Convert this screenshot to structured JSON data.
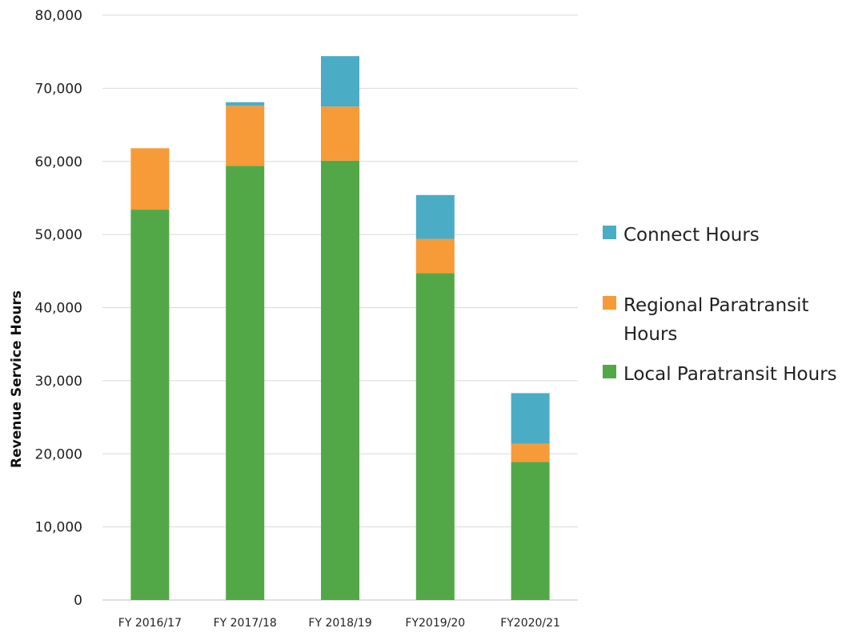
{
  "chart_data": {
    "type": "bar",
    "stacked": true,
    "categories": [
      "FY 2016/17",
      "FY 2017/18",
      "FY 2018/19",
      "FY2019/20",
      "FY2020/21"
    ],
    "series": [
      {
        "name": "Local Paratransit Hours",
        "color": "#52A846",
        "values": [
          53400,
          59400,
          60100,
          44700,
          18900
        ]
      },
      {
        "name": "Regional Paratransit Hours",
        "color": "#F79A38",
        "values": [
          8400,
          8200,
          7400,
          4700,
          2500
        ]
      },
      {
        "name": "Connect Hours",
        "color": "#4BACC6",
        "values": [
          0,
          500,
          6900,
          6000,
          6900
        ]
      }
    ],
    "ylabel": "Revenue Service Hours",
    "xlabel": "",
    "ylim": [
      0,
      80000
    ],
    "yticks": [
      "0",
      "10,000",
      "20,000",
      "30,000",
      "40,000",
      "50,000",
      "60,000",
      "70,000",
      "80,000"
    ],
    "grid": true,
    "legend": {
      "position": "right",
      "entries": [
        {
          "lines": [
            "Connect Hours"
          ],
          "series": "Connect Hours"
        },
        {
          "lines": [
            "Regional Paratransit",
            "Hours"
          ],
          "series": "Regional Paratransit Hours"
        },
        {
          "lines": [
            "Local Paratransit Hours"
          ],
          "series": "Local Paratransit Hours"
        }
      ]
    }
  }
}
